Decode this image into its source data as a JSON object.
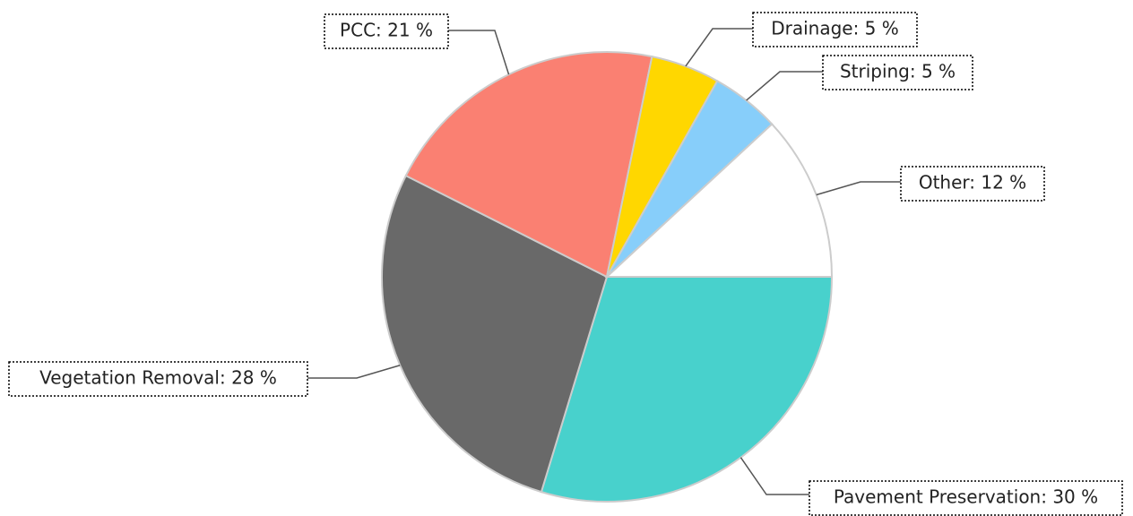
{
  "chart_data": {
    "type": "pie",
    "values": [
      30,
      28,
      21,
      5,
      5,
      12
    ],
    "value_labels": [
      "Pavement Preservation: 30 %",
      "Vegetation Removal: 28 %",
      "PCC: 21 %",
      "Drainage: 5 %",
      "Striping: 5 %",
      "Other: 12 %"
    ],
    "colors": [
      "#48d1cc",
      "#696969",
      "#fa8072",
      "#ffd700",
      "#87cefa",
      "#ffffff"
    ]
  }
}
